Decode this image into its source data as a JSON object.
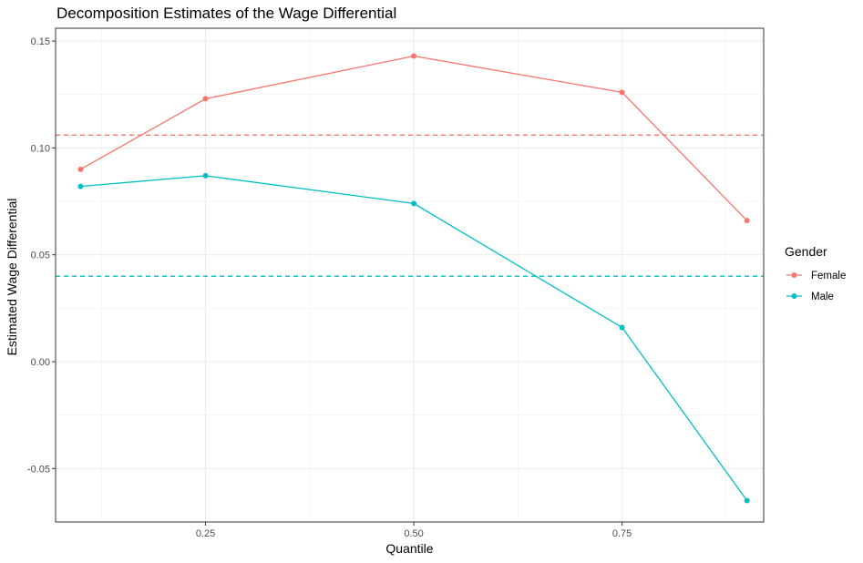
{
  "chart_data": {
    "type": "line",
    "title": "Decomposition Estimates of the Wage Differential",
    "xlabel": "Quantile",
    "ylabel": "Estimated Wage Differential",
    "xlim": [
      0.07,
      0.92
    ],
    "ylim": [
      -0.075,
      0.156
    ],
    "x_ticks": [
      0.25,
      0.5,
      0.75
    ],
    "x_tick_labels": [
      "0.25",
      "0.50",
      "0.75"
    ],
    "y_ticks": [
      -0.05,
      0.0,
      0.05,
      0.1,
      0.15
    ],
    "y_tick_labels": [
      "-0.05",
      "0.00",
      "0.05",
      "0.10",
      "0.15"
    ],
    "grid": true,
    "legend": {
      "title": "Gender",
      "position": "right"
    },
    "x": [
      0.1,
      0.25,
      0.5,
      0.75,
      0.9
    ],
    "series": [
      {
        "name": "Female",
        "color": "#F8766D",
        "values": [
          0.09,
          0.123,
          0.143,
          0.126,
          0.066
        ],
        "reference_line": 0.106,
        "reference_style": "dashed"
      },
      {
        "name": "Male",
        "color": "#00BFC4",
        "values": [
          0.082,
          0.087,
          0.074,
          0.016,
          -0.065
        ],
        "reference_line": 0.04,
        "reference_style": "dashed"
      }
    ]
  }
}
